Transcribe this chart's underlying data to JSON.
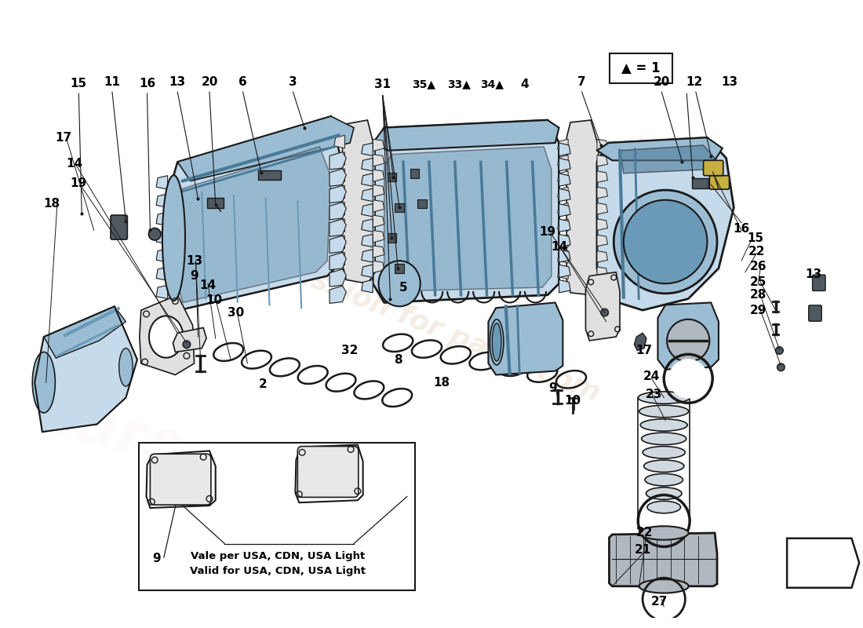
{
  "background_color": "#ffffff",
  "watermark_color": "#d4b896",
  "legend_text": "▲ = 1",
  "note_line1": "Vale per USA, CDN, USA Light",
  "note_line2": "Valid for USA, CDN, USA Light",
  "blue_fill": "#c5daea",
  "blue_mid": "#9bbdd4",
  "blue_dark": "#6a9ab8",
  "blue_deep": "#4a7a98",
  "line_color": "#1a1a1a",
  "dark_line": "#0a0a0a",
  "gasket_color": "#e0e0e0",
  "gray_part": "#b0b8c0",
  "dark_part": "#606870",
  "small_part_color": "#505860"
}
